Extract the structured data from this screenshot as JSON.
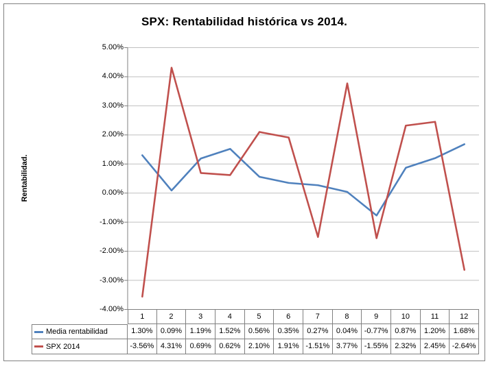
{
  "chart_data": {
    "type": "line",
    "title": "SPX: Rentabilidad histórica vs 2014.",
    "xlabel": "",
    "ylabel": "Rentabilidad.",
    "ylim": [
      -4,
      5
    ],
    "y_tick_step": 1,
    "y_ticks": [
      "5.00%",
      "4.00%",
      "3.00%",
      "2.00%",
      "1.00%",
      "0.00%",
      "-1.00%",
      "-2.00%",
      "-3.00%",
      "-4.00%"
    ],
    "grid": true,
    "legend_position": "table-left",
    "categories": [
      "1",
      "2",
      "3",
      "4",
      "5",
      "6",
      "7",
      "8",
      "9",
      "10",
      "11",
      "12"
    ],
    "series": [
      {
        "name": "Media rentabilidad",
        "color": "#4F81BD",
        "values": [
          1.3,
          0.09,
          1.19,
          1.52,
          0.56,
          0.35,
          0.27,
          0.04,
          -0.77,
          0.87,
          1.2,
          1.68
        ]
      },
      {
        "name": "SPX 2014",
        "color": "#C0504D",
        "values": [
          -3.56,
          4.31,
          0.69,
          0.62,
          2.1,
          1.91,
          -1.51,
          3.77,
          -1.55,
          2.32,
          2.45,
          -2.64
        ]
      }
    ]
  },
  "table": {
    "rows": [
      {
        "label": "Media rentabilidad",
        "values": [
          "1.30%",
          "0.09%",
          "1.19%",
          "1.52%",
          "0.56%",
          "0.35%",
          "0.27%",
          "0.04%",
          "-0.77%",
          "0.87%",
          "1.20%",
          "1.68%"
        ]
      },
      {
        "label": "SPX 2014",
        "values": [
          "-3.56%",
          "4.31%",
          "0.69%",
          "0.62%",
          "2.10%",
          "1.91%",
          "-1.51%",
          "3.77%",
          "-1.55%",
          "2.32%",
          "2.45%",
          "-2.64%"
        ]
      }
    ]
  },
  "colors": {
    "gridline": "#bfbfbf",
    "axis": "#808080",
    "table_border": "#7f7f7f"
  }
}
